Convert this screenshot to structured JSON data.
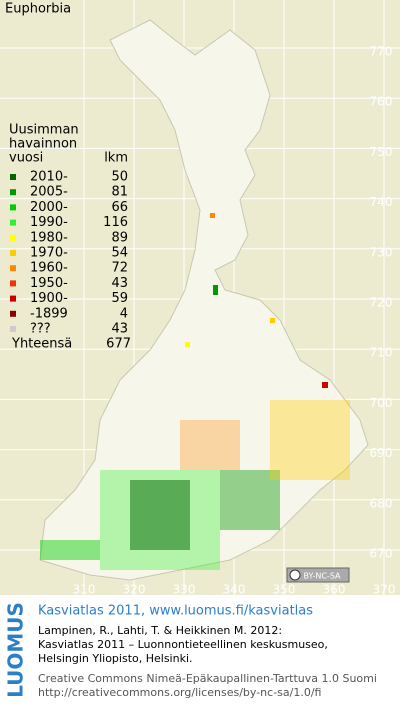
{
  "title": "Euphorbia",
  "legend": {
    "heading": [
      "Uusimman",
      "havainnon",
      "vuosi"
    ],
    "count_heading": "lkm",
    "rows": [
      {
        "label": "2010-",
        "count": 50,
        "color": "#006600"
      },
      {
        "label": "2005-",
        "count": 81,
        "color": "#009900"
      },
      {
        "label": "2000-",
        "count": 66,
        "color": "#00cc00"
      },
      {
        "label": "1990-",
        "count": 116,
        "color": "#33ee33"
      },
      {
        "label": "1980-",
        "count": 89,
        "color": "#ffff00"
      },
      {
        "label": "1970-",
        "count": 54,
        "color": "#ffcc00"
      },
      {
        "label": "1960-",
        "count": 72,
        "color": "#ff8800"
      },
      {
        "label": "1950-",
        "count": 43,
        "color": "#ee3300"
      },
      {
        "label": "1900-",
        "count": 59,
        "color": "#cc0000"
      },
      {
        "label": "-1899",
        "count": 4,
        "color": "#880000"
      },
      {
        "label": "???",
        "count": 43,
        "color": "#cccccc"
      }
    ],
    "total_label": "Yhteensä",
    "total": 677
  },
  "map": {
    "yticks": [
      770,
      760,
      750,
      740,
      730,
      720,
      710,
      700,
      690,
      680,
      670
    ],
    "xticks": [
      310,
      320,
      330,
      340,
      350,
      360,
      370
    ]
  },
  "license_badge": "BY-NC-SA",
  "footer": {
    "brand": "LUOMUS",
    "headline": "Kasviatlas 2011, www.luomus.fi/kasviatlas",
    "citation": [
      "Lampinen, R., Lahti, T. & Heikkinen M. 2012:",
      "Kasviatlas 2011 – Luonnontieteellinen keskusmuseo,",
      "Helsingin Yliopisto, Helsinki."
    ],
    "license": [
      "Creative Commons Nimeä-Epäkaupallinen-Tarttuva 1.0 Suomi",
      "http://creativecommons.org/licenses/by-nc-sa/1.0/fi"
    ]
  }
}
